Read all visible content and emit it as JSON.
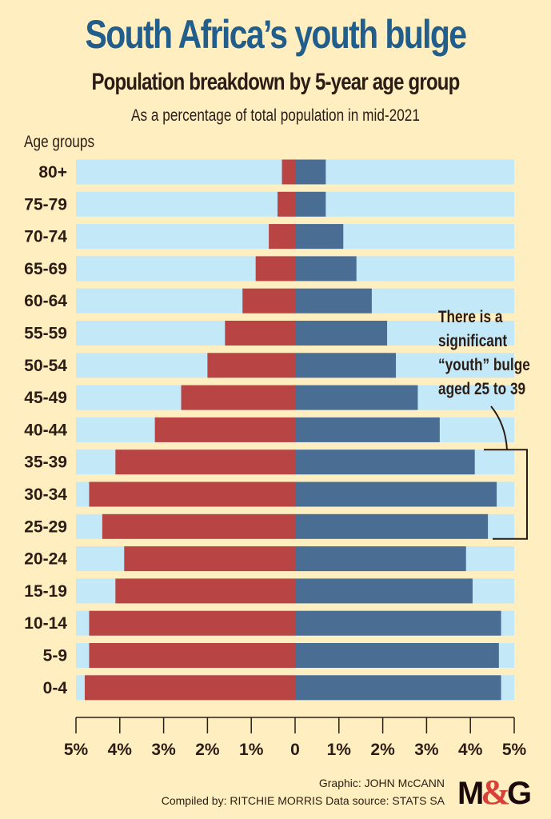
{
  "header": {
    "title": "South Africa’s youth bulge",
    "subtitle": "Population breakdown by 5-year age group",
    "description": "As a percentage of total population in mid-2021",
    "y_axis_label": "Age groups"
  },
  "annotation": {
    "lines": [
      "There is a",
      "significant",
      "“youth” bulge",
      "aged 25 to 39"
    ]
  },
  "footer": {
    "graphic": "Graphic: JOHN McCANN",
    "compiled": "Compiled by: RITCHIE MORRIS  Data source: STATS SA",
    "logo_m": "M",
    "logo_amp": "&",
    "logo_g": "G"
  },
  "colors": {
    "background": "#FFEEBF",
    "track": "#C3E8F8",
    "left_series": "#B84444",
    "right_series": "#4A6D94",
    "title": "#225E8C",
    "text": "#2B1D15"
  },
  "chart_data": {
    "type": "bar",
    "orientation": "horizontal-population-pyramid",
    "title": "South Africa’s youth bulge",
    "subtitle": "Population breakdown by 5-year age group",
    "ylabel": "Age groups",
    "xlabel": "As a percentage of total population in mid-2021",
    "categories": [
      "80+",
      "75-79",
      "70-74",
      "65-69",
      "60-64",
      "55-59",
      "50-54",
      "45-49",
      "40-44",
      "35-39",
      "30-34",
      "25-29",
      "20-24",
      "15-19",
      "10-14",
      "5-9",
      "0-4"
    ],
    "series": [
      {
        "name": "left (red)",
        "side": "left",
        "values": [
          0.3,
          0.4,
          0.6,
          0.9,
          1.2,
          1.6,
          2.0,
          2.6,
          3.2,
          4.1,
          4.7,
          4.4,
          3.9,
          4.1,
          4.7,
          4.7,
          4.8
        ]
      },
      {
        "name": "right (blue)",
        "side": "right",
        "values": [
          0.7,
          0.7,
          1.1,
          1.4,
          1.75,
          2.1,
          2.3,
          2.8,
          3.3,
          4.1,
          4.6,
          4.4,
          3.9,
          4.05,
          4.7,
          4.65,
          4.7
        ]
      }
    ],
    "xlim": [
      -5,
      5
    ],
    "x_ticks": [
      -5,
      -4,
      -3,
      -2,
      -1,
      0,
      1,
      2,
      3,
      4,
      5
    ],
    "x_tick_labels": [
      "5%",
      "4%",
      "3%",
      "2%",
      "1%",
      "0",
      "1%",
      "2%",
      "3%",
      "4%",
      "5%"
    ],
    "grid": false,
    "legend": "none",
    "annotation": {
      "text": "There is a significant “youth” bulge aged 25 to 39",
      "bracket_categories": [
        "35-39",
        "30-34",
        "25-29"
      ]
    }
  }
}
